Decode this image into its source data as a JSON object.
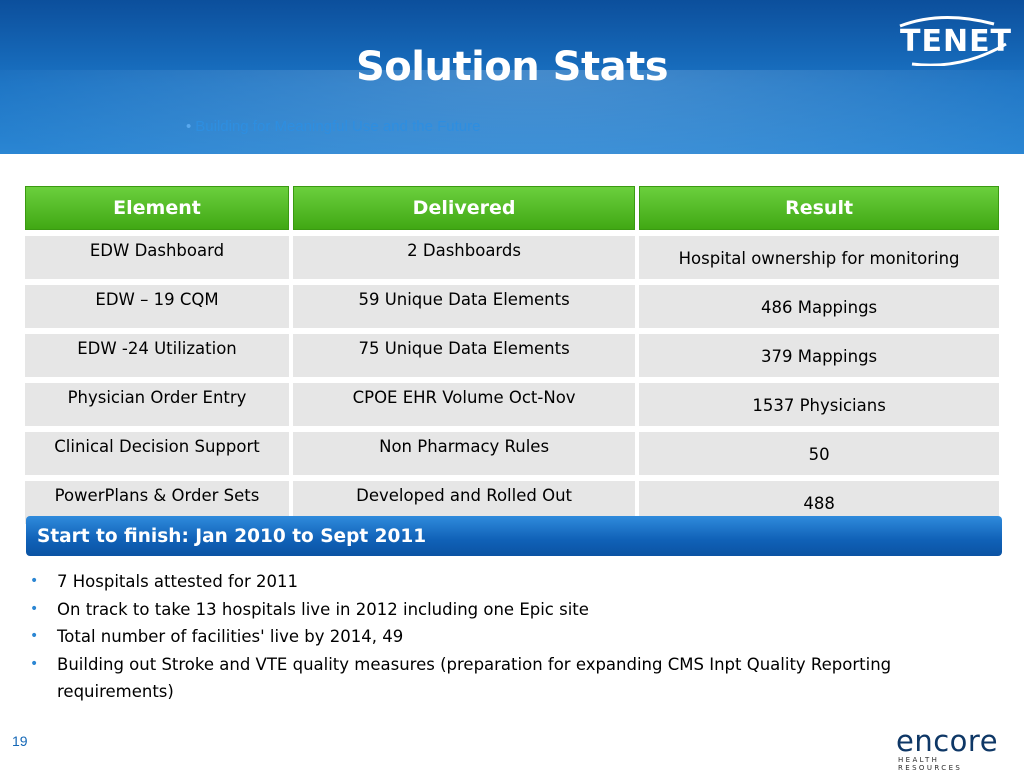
{
  "slide": {
    "title": "Solution Stats",
    "header_bullet": "Building for Meaningful Use and the Future",
    "page_number": "19",
    "logos": {
      "top_right": "TENET",
      "bottom_right": "encore",
      "bottom_right_tagline": "HEALTH RESOURCES"
    }
  },
  "table": {
    "headers": [
      "Element",
      "Delivered",
      "Result"
    ],
    "rows": [
      [
        "EDW Dashboard",
        "2 Dashboards",
        "Hospital ownership for monitoring"
      ],
      [
        "EDW – 19 CQM",
        "59 Unique Data Elements",
        "486 Mappings"
      ],
      [
        "EDW -24 Utilization",
        "75 Unique Data Elements",
        "379 Mappings"
      ],
      [
        "Physician Order Entry",
        "CPOE EHR Volume Oct-Nov",
        "1537 Physicians"
      ],
      [
        "Clinical Decision Support",
        "Non Pharmacy Rules",
        "50"
      ],
      [
        "PowerPlans & Order Sets",
        "Developed and Rolled Out",
        "488"
      ]
    ]
  },
  "timeline_band": "Start to finish: Jan 2010 to Sept 2011",
  "bullets": [
    "7 Hospitals attested for 2011",
    "On track to take 13 hospitals live in 2012 including one Epic site",
    "Total number of facilities' live by 2014, 49",
    "Building out Stroke and VTE quality measures (preparation for expanding CMS Inpt Quality Reporting requirements)"
  ],
  "colors": {
    "header_blue": "#1a73c4",
    "table_header_green": "#41a814",
    "cell_gray": "#e6e6e6",
    "band_blue": "#1061b7",
    "bullet_blue": "#2b86d3"
  }
}
